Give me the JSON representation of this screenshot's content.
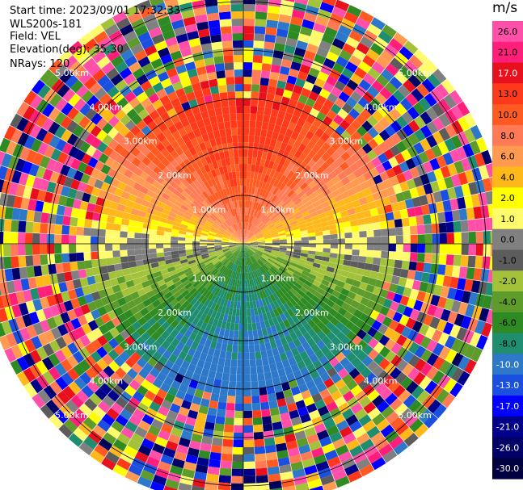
{
  "header": {
    "start_time": "Start time: 2023/09/01 17:32:33",
    "instrument": "WLS200s-181",
    "field": "Field: VEL",
    "elevation": "Elevation(deg): 35.30",
    "nrays": "NRays: 120"
  },
  "colorbar": {
    "unit": "m/s",
    "ticks": [
      "26.0",
      "21.0",
      "17.0",
      "13.0",
      "10.0",
      "8.0",
      "6.0",
      "4.0",
      "2.0",
      "1.0",
      "0.0",
      "-1.0",
      "-2.0",
      "-4.0",
      "-6.0",
      "-8.0",
      "-10.0",
      "-13.0",
      "-17.0",
      "-21.0",
      "-26.0",
      "-30.0"
    ],
    "colors": [
      "#ff4fa8",
      "#ff1f7a",
      "#e8101c",
      "#ff3a1a",
      "#ff5a22",
      "#ff7a55",
      "#ff9a50",
      "#ffb81a",
      "#ffff00",
      "#fffb6a",
      "#808080",
      "#5c5c5c",
      "#a3c23a",
      "#5d9c2a",
      "#2e8a22",
      "#1f8d6f",
      "#2d78c8",
      "#1a4fe0",
      "#0000ff",
      "#00008b",
      "#000066",
      "#000040"
    ]
  },
  "chart_data": {
    "type": "heatmap",
    "subtype": "ppi_radial_velocity",
    "field": "VEL",
    "units": "m/s",
    "elevation_deg": 35.3,
    "n_rays": 120,
    "range_rings_km": [
      1.0,
      2.0,
      3.0,
      4.0,
      5.0
    ],
    "ring_labels": [
      "1.00km",
      "2.00km",
      "3.00km",
      "4.00km",
      "5.00km"
    ],
    "max_range_km": 5.4,
    "vmin": -30.0,
    "vmax": 26.0,
    "pattern": {
      "north_half_velocity": 12,
      "south_half_velocity": -12,
      "noise_beyond_km": 3.5
    }
  }
}
